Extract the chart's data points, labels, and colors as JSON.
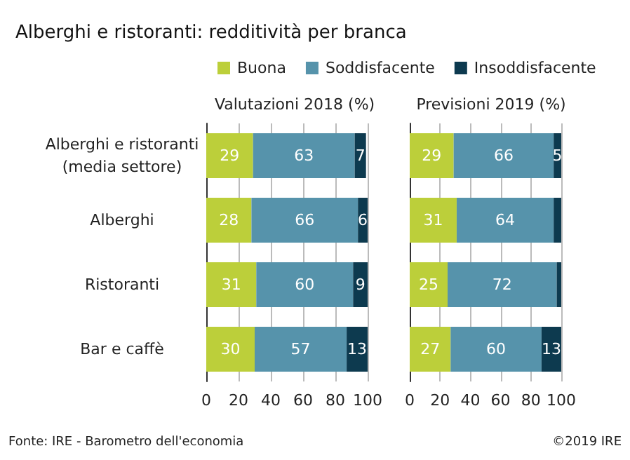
{
  "chart_data": [
    {
      "type": "bar",
      "orientation": "horizontal",
      "stacked": true,
      "title": "Alberghi e ristoranti: redditività per branca",
      "subtitle": "Valutazioni 2018 (%)",
      "categories": [
        "Alberghi e ristoranti\n(media settore)",
        "Alberghi",
        "Ristoranti",
        "Bar e caffè"
      ],
      "series": [
        {
          "name": "Buona",
          "color": "#bccf3a",
          "values": [
            29,
            28,
            31,
            30
          ]
        },
        {
          "name": "Soddisfacente",
          "color": "#5693ab",
          "values": [
            63,
            66,
            60,
            57
          ]
        },
        {
          "name": "Insoddisfacente",
          "color": "#0d3a4f",
          "values": [
            7,
            6,
            9,
            13
          ]
        }
      ],
      "xlim": [
        0,
        100
      ],
      "xticks": [
        0,
        20,
        40,
        60,
        80,
        100
      ],
      "grid": "x",
      "legend": "top",
      "data_labels": true,
      "annotations": [
        "Fonte: IRE - Barometro dell'economia",
        "©2019 IRE"
      ]
    },
    {
      "type": "bar",
      "orientation": "horizontal",
      "stacked": true,
      "subtitle": "Previsioni 2019 (%)",
      "categories": [
        null,
        null,
        null,
        null
      ],
      "series": [
        {
          "color": "#bccf3a",
          "values": [
            29,
            31,
            25,
            27
          ],
          "value_labels": [
            "29",
            "31",
            "25",
            "27"
          ]
        },
        {
          "color": "#5693ab",
          "values": [
            66,
            64,
            72,
            60
          ],
          "value_labels": [
            "66",
            "64",
            "72",
            "60"
          ]
        },
        {
          "color": "#0d3a4f",
          "values": [
            5,
            5,
            3,
            13
          ],
          "value_labels": [
            "5",
            null,
            null,
            "13"
          ]
        }
      ],
      "xlim": [
        0,
        100
      ],
      "xticks": [
        0,
        20,
        40,
        60,
        80,
        100
      ],
      "grid": "x",
      "legend": false,
      "tick_labels": "x"
    }
  ]
}
